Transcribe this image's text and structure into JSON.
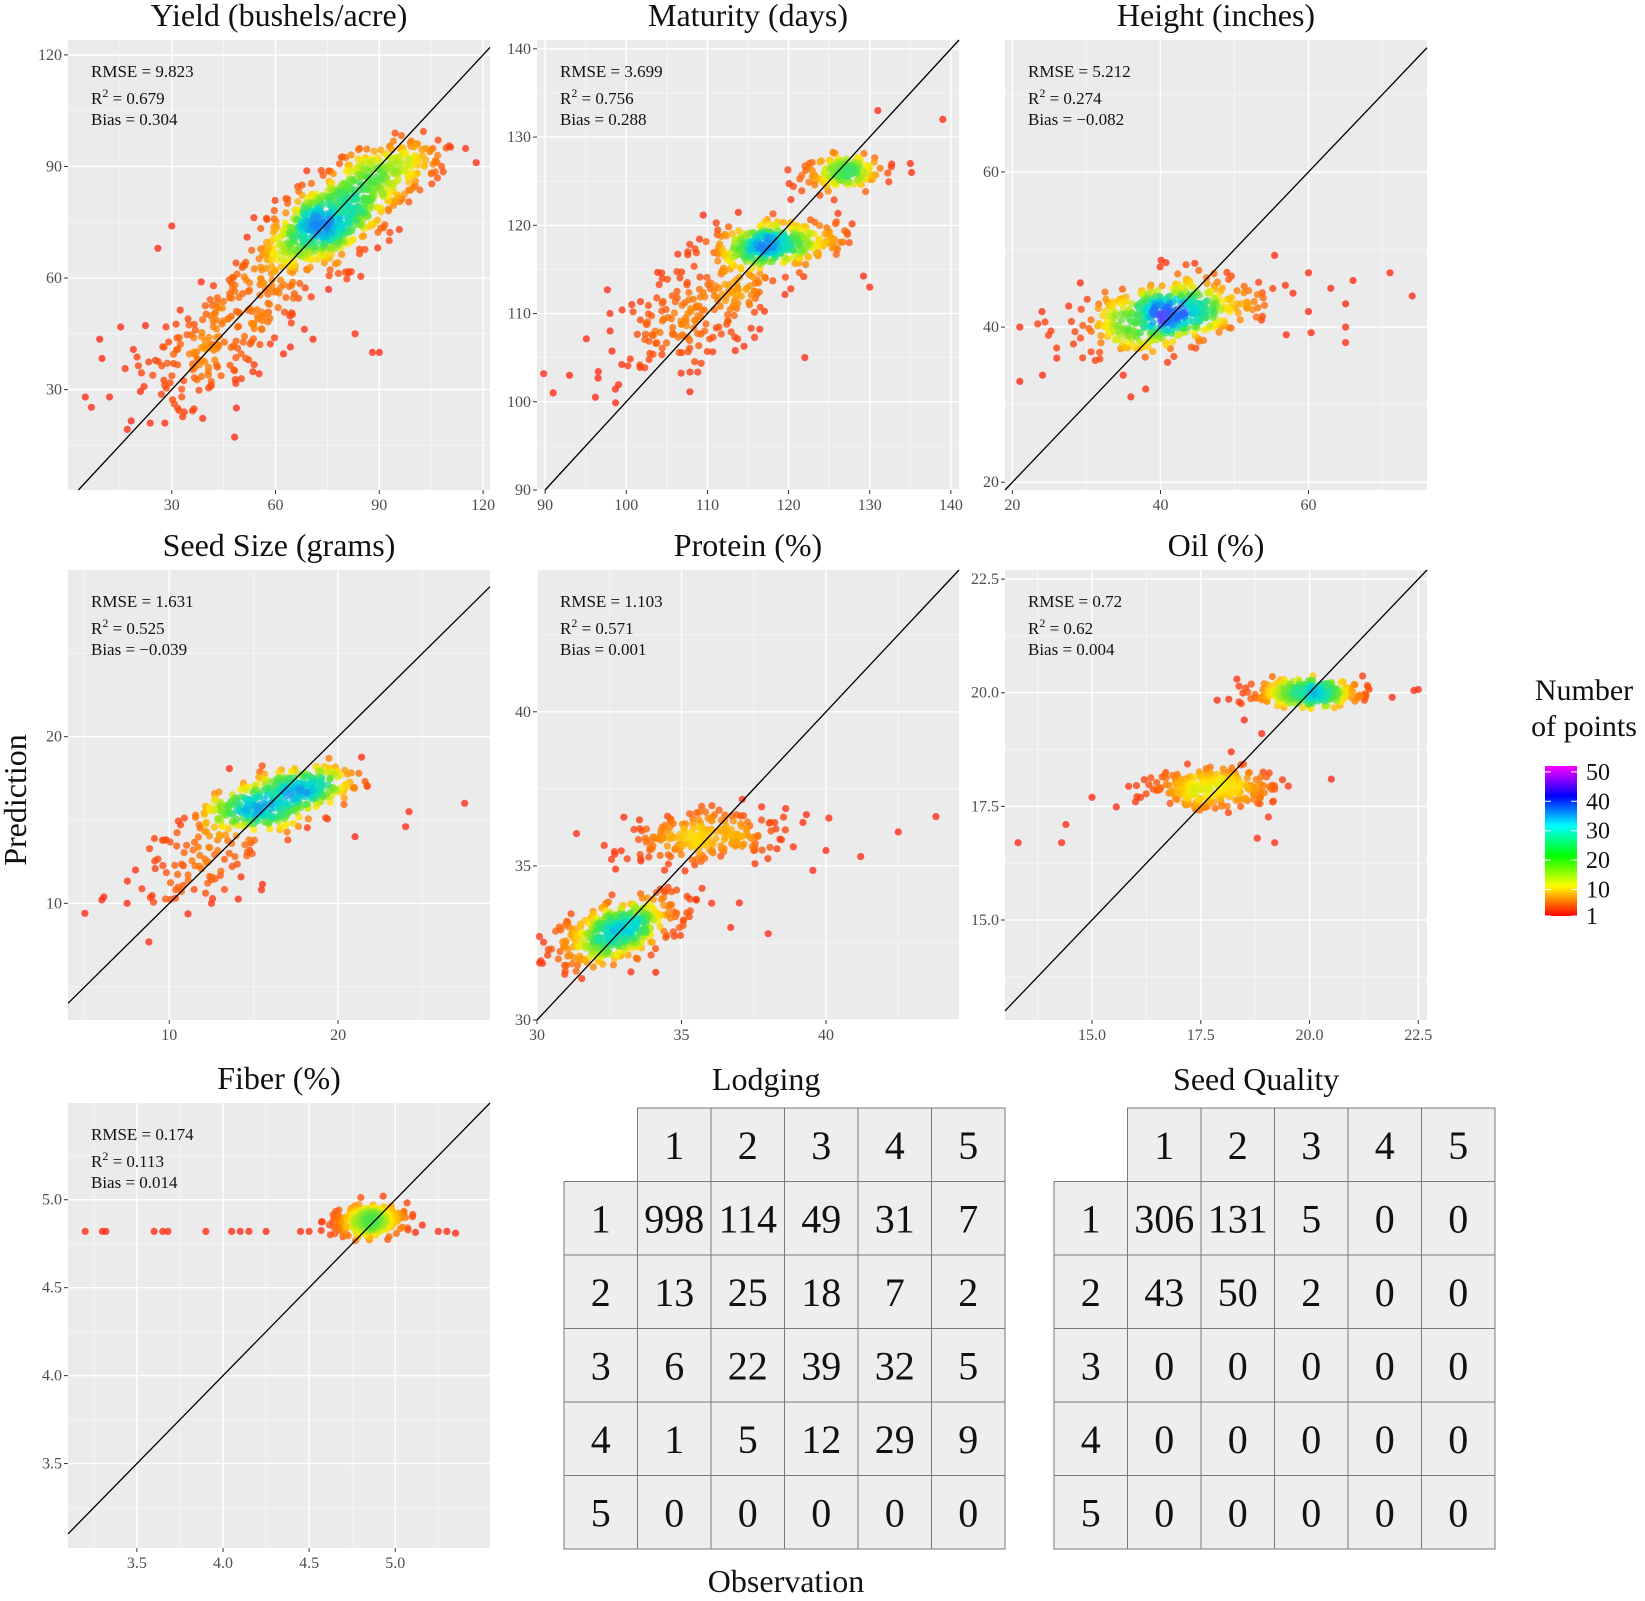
{
  "figure": {
    "x_label": "Observation",
    "y_label": "Prediction",
    "legend": {
      "title_line1": "Number",
      "title_line2": "of points",
      "ticks": [
        "50",
        "40",
        "30",
        "20",
        "10",
        "1"
      ],
      "tick_values": [
        50,
        40,
        30,
        20,
        10,
        1
      ],
      "colors": [
        "#ff00ff",
        "#0000ff",
        "#00ffff",
        "#00ff00",
        "#ffff00",
        "#ff0000"
      ]
    }
  },
  "chart_data": [
    {
      "id": "yield",
      "type": "scatter",
      "title": "Yield (bushels/acre)",
      "xlim": [
        0,
        122
      ],
      "ylim": [
        3,
        124
      ],
      "xticks": [
        30,
        60,
        90,
        120
      ],
      "xtick_labels": [
        "30",
        "60",
        "90",
        "120"
      ],
      "yticks": [
        30,
        60,
        90,
        120
      ],
      "ytick_labels": [
        "30",
        "60",
        "90",
        "120"
      ],
      "stats": {
        "rmse": "RMSE = 9.823",
        "r2_prefix": "R",
        "r2_value": " = 0.679",
        "bias": "Bias = 0.304"
      },
      "clusters": [
        {
          "cx": 75,
          "cy": 75,
          "sx": 11,
          "sy": 8,
          "rho": 0.65,
          "n": 650
        },
        {
          "cx": 45,
          "cy": 45,
          "sx": 12,
          "sy": 10,
          "rho": 0.5,
          "n": 220
        },
        {
          "cx": 95,
          "cy": 90,
          "sx": 8,
          "sy": 4,
          "rho": 0.4,
          "n": 150
        }
      ],
      "outliers": [
        [
          5,
          28
        ],
        [
          12,
          28
        ],
        [
          28,
          21
        ],
        [
          88,
          40
        ],
        [
          90,
          40
        ],
        [
          83,
          45
        ],
        [
          108,
          90
        ],
        [
          118,
          91
        ],
        [
          26,
          68
        ],
        [
          30,
          74
        ]
      ]
    },
    {
      "id": "maturity",
      "type": "scatter",
      "title": "Maturity (days)",
      "xlim": [
        89,
        141
      ],
      "ylim": [
        90,
        141
      ],
      "xticks": [
        90,
        100,
        110,
        120,
        130,
        140
      ],
      "xtick_labels": [
        "90",
        "100",
        "110",
        "120",
        "130",
        "140"
      ],
      "yticks": [
        90,
        100,
        110,
        120,
        130,
        140
      ],
      "ytick_labels": [
        "90",
        "100",
        "110",
        "120",
        "130",
        "140"
      ],
      "stats": {
        "rmse": "RMSE = 3.699",
        "r2_prefix": "R",
        "r2_value": " = 0.756",
        "bias": "Bias = 0.288"
      },
      "clusters": [
        {
          "cx": 118,
          "cy": 118,
          "sx": 4,
          "sy": 1.2,
          "rho": 0.2,
          "n": 320
        },
        {
          "cx": 127,
          "cy": 126,
          "sx": 2.6,
          "sy": 0.9,
          "rho": 0.1,
          "n": 150
        },
        {
          "cx": 110,
          "cy": 111,
          "sx": 6,
          "sy": 4,
          "rho": 0.6,
          "n": 250
        }
      ],
      "outliers": [
        [
          91,
          101
        ],
        [
          93,
          103
        ],
        [
          139,
          132
        ],
        [
          131,
          133
        ],
        [
          130,
          113
        ],
        [
          122,
          105
        ],
        [
          98,
          110
        ],
        [
          135,
          127
        ]
      ]
    },
    {
      "id": "height",
      "type": "scatter",
      "title": "Height (inches)",
      "xlim": [
        19,
        76
      ],
      "ylim": [
        19,
        77
      ],
      "xticks": [
        20,
        40,
        60
      ],
      "xtick_labels": [
        "20",
        "40",
        "60"
      ],
      "yticks": [
        20,
        40,
        60
      ],
      "ytick_labels": [
        "20",
        "40",
        "60"
      ],
      "stats": {
        "rmse": "RMSE = 5.212",
        "r2_prefix": "R",
        "r2_value": " = 0.274",
        "bias": "Bias = −0.082"
      },
      "clusters": [
        {
          "cx": 41,
          "cy": 41.5,
          "sx": 6,
          "sy": 2.5,
          "rho": 0.4,
          "n": 480
        }
      ],
      "outliers": [
        [
          21,
          40
        ],
        [
          21,
          33
        ],
        [
          24,
          42
        ],
        [
          60,
          47
        ],
        [
          63,
          45
        ],
        [
          65,
          43
        ],
        [
          65,
          40
        ],
        [
          65,
          38
        ],
        [
          71,
          47
        ],
        [
          74,
          44
        ],
        [
          60,
          42
        ],
        [
          66,
          46
        ],
        [
          26,
          36
        ],
        [
          36,
          31
        ],
        [
          38,
          32
        ],
        [
          57,
          39
        ]
      ]
    },
    {
      "id": "seed_size",
      "type": "scatter",
      "title": "Seed Size (grams)",
      "xlim": [
        4,
        29
      ],
      "ylim": [
        3,
        30
      ],
      "xticks": [
        10,
        20
      ],
      "xtick_labels": [
        "10",
        "20"
      ],
      "yticks": [
        10,
        20
      ],
      "ytick_labels": [
        "10",
        "20"
      ],
      "stats": {
        "rmse": "RMSE = 1.631",
        "r2_prefix": "R",
        "r2_value": " = 0.525",
        "bias": "Bias = −0.039"
      },
      "clusters": [
        {
          "cx": 15.5,
          "cy": 15.7,
          "sx": 1.8,
          "sy": 0.8,
          "rho": 0.3,
          "n": 230
        },
        {
          "cx": 18,
          "cy": 17.2,
          "sx": 1.6,
          "sy": 0.5,
          "rho": 0.2,
          "n": 160
        },
        {
          "cx": 12,
          "cy": 13,
          "sx": 2.5,
          "sy": 1.8,
          "rho": 0.5,
          "n": 110
        }
      ],
      "outliers": [
        [
          5,
          9.4
        ],
        [
          7.5,
          10
        ],
        [
          6,
          10.2
        ],
        [
          24,
          14.6
        ],
        [
          24.2,
          15.5
        ],
        [
          27.5,
          16
        ],
        [
          21,
          14
        ],
        [
          12.5,
          10
        ],
        [
          8,
          12
        ]
      ]
    },
    {
      "id": "protein",
      "type": "scatter",
      "title": "Protein (%)",
      "xlim": [
        30,
        44.6
      ],
      "ylim": [
        30,
        44.6
      ],
      "xticks": [
        30,
        35,
        40
      ],
      "xtick_labels": [
        "30",
        "35",
        "40"
      ],
      "yticks": [
        30,
        35,
        40
      ],
      "ytick_labels": [
        "30",
        "35",
        "40"
      ],
      "stats": {
        "rmse": "RMSE = 1.103",
        "r2_prefix": "R",
        "r2_value": " = 0.571",
        "bias": "Bias = 0.001"
      },
      "clusters": [
        {
          "cx": 32.8,
          "cy": 32.9,
          "sx": 1.1,
          "sy": 0.55,
          "rho": 0.45,
          "n": 440
        },
        {
          "cx": 35.8,
          "cy": 36,
          "sx": 1.5,
          "sy": 0.45,
          "rho": 0.15,
          "n": 220
        }
      ],
      "outliers": [
        [
          30.5,
          32.3
        ],
        [
          40,
          35.5
        ],
        [
          41.2,
          35.3
        ],
        [
          42.5,
          36.1
        ],
        [
          43.8,
          36.6
        ],
        [
          38,
          32.8
        ],
        [
          36.7,
          33
        ],
        [
          37,
          33.8
        ]
      ]
    },
    {
      "id": "oil",
      "type": "scatter",
      "title": "Oil (%)",
      "xlim": [
        13,
        22.7
      ],
      "ylim": [
        12.8,
        22.7
      ],
      "xticks": [
        15,
        17.5,
        20,
        22.5
      ],
      "xtick_labels": [
        "15.0",
        "17.5",
        "20.0",
        "22.5"
      ],
      "yticks": [
        15,
        17.5,
        20,
        22.5
      ],
      "ytick_labels": [
        "15.0",
        "17.5",
        "20.0",
        "22.5"
      ],
      "stats": {
        "rmse": "RMSE = 0.72",
        "r2_prefix": "R",
        "r2_value": " = 0.62",
        "bias": "Bias = 0.004"
      },
      "clusters": [
        {
          "cx": 20,
          "cy": 20,
          "sx": 0.65,
          "sy": 0.13,
          "rho": 0.1,
          "n": 340
        },
        {
          "cx": 17.8,
          "cy": 17.9,
          "sx": 0.75,
          "sy": 0.25,
          "rho": 0.1,
          "n": 260
        }
      ],
      "outliers": [
        [
          13.3,
          16.7
        ],
        [
          14.3,
          16.7
        ],
        [
          14.4,
          17.1
        ],
        [
          15,
          17.7
        ],
        [
          16,
          17.6
        ],
        [
          22.4,
          20.05
        ],
        [
          22.5,
          20.07
        ],
        [
          21.9,
          19.9
        ],
        [
          18.8,
          16.8
        ],
        [
          19.2,
          16.7
        ],
        [
          20.5,
          18.1
        ],
        [
          18.2,
          18.7
        ],
        [
          18.5,
          19.4
        ],
        [
          18.9,
          19.1
        ]
      ]
    },
    {
      "id": "fiber",
      "type": "scatter",
      "title": "Fiber (%)",
      "xlim": [
        3.1,
        5.55
      ],
      "ylim": [
        3.02,
        5.55
      ],
      "xticks": [
        3.5,
        4.0,
        4.5,
        5.0
      ],
      "xtick_labels": [
        "3.5",
        "4.0",
        "4.5",
        "5.0"
      ],
      "yticks": [
        3.5,
        4.0,
        4.5,
        5.0
      ],
      "ytick_labels": [
        "3.5",
        "4.0",
        "4.5",
        "5.0"
      ],
      "stats": {
        "rmse": "RMSE = 0.174",
        "r2_prefix": "R",
        "r2_value": " = 0.113",
        "bias": "Bias = 0.014"
      },
      "clusters": [
        {
          "cx": 4.85,
          "cy": 4.88,
          "sx": 0.11,
          "sy": 0.04,
          "rho": 0.2,
          "n": 320
        }
      ],
      "outliers": [
        [
          3.2,
          4.82
        ],
        [
          3.3,
          4.82
        ],
        [
          3.32,
          4.82
        ],
        [
          3.6,
          4.82
        ],
        [
          3.65,
          4.82
        ],
        [
          3.68,
          4.82
        ],
        [
          3.9,
          4.82
        ],
        [
          4.05,
          4.82
        ],
        [
          4.1,
          4.82
        ],
        [
          4.15,
          4.82
        ],
        [
          4.25,
          4.82
        ],
        [
          4.45,
          4.82
        ],
        [
          4.5,
          4.82
        ],
        [
          5.25,
          4.82
        ],
        [
          5.3,
          4.82
        ],
        [
          5.35,
          4.81
        ],
        [
          4.93,
          5.02
        ]
      ]
    },
    {
      "id": "lodging",
      "type": "table",
      "title": "Lodging",
      "col_headers": [
        "1",
        "2",
        "3",
        "4",
        "5"
      ],
      "row_headers": [
        "1",
        "2",
        "3",
        "4",
        "5"
      ],
      "values": [
        [
          "998",
          "114",
          "49",
          "31",
          "7"
        ],
        [
          "13",
          "25",
          "18",
          "7",
          "2"
        ],
        [
          "6",
          "22",
          "39",
          "32",
          "5"
        ],
        [
          "1",
          "5",
          "12",
          "29",
          "9"
        ],
        [
          "0",
          "0",
          "0",
          "0",
          "0"
        ]
      ]
    },
    {
      "id": "seed_quality",
      "type": "table",
      "title": "Seed Quality",
      "col_headers": [
        "1",
        "2",
        "3",
        "4",
        "5"
      ],
      "row_headers": [
        "1",
        "2",
        "3",
        "4",
        "5"
      ],
      "values": [
        [
          "306",
          "131",
          "5",
          "0",
          "0"
        ],
        [
          "43",
          "50",
          "2",
          "0",
          "0"
        ],
        [
          "0",
          "0",
          "0",
          "0",
          "0"
        ],
        [
          "0",
          "0",
          "0",
          "0",
          "0"
        ],
        [
          "0",
          "0",
          "0",
          "0",
          "0"
        ]
      ]
    }
  ]
}
